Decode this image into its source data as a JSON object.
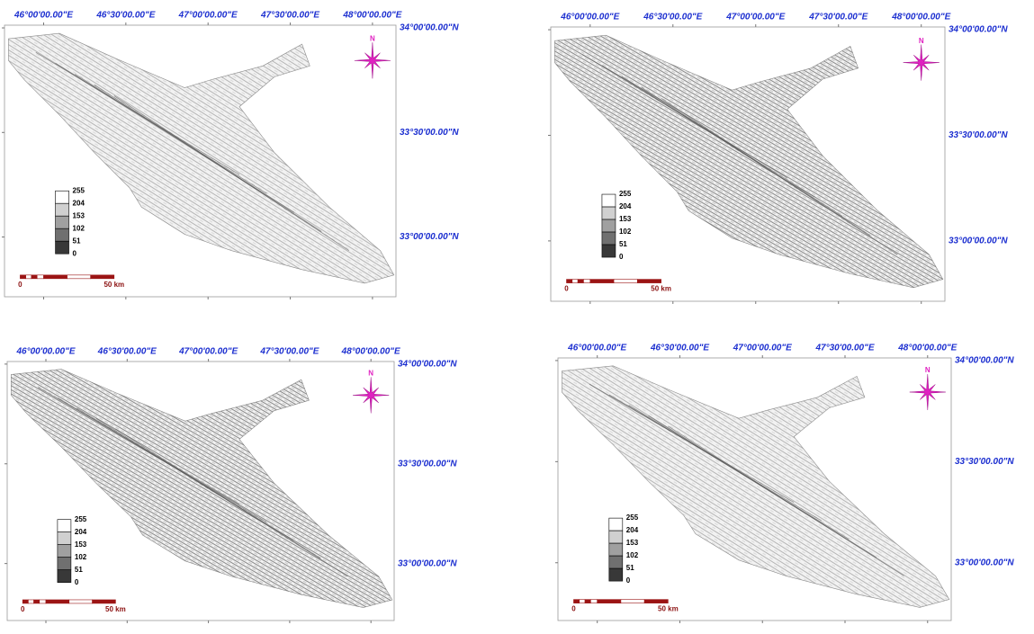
{
  "panels": [
    {
      "lon_labels": [
        "46°00'00.00\"E",
        "46°30'00.00\"E",
        "47°00'00.00\"E",
        "47°30'00.00\"E",
        "48°00'00.00\"E"
      ],
      "lat_labels": [
        "34°00'00.00\"N",
        "33°30'00.00\"N",
        "33°00'00.00\"N"
      ],
      "north": "N",
      "legend": [
        255,
        204,
        153,
        102,
        51,
        0
      ],
      "scale_bar": [
        "0",
        "50 km"
      ]
    },
    {
      "lon_labels": [
        "46°00'00.00\"E",
        "46°30'00.00\"E",
        "47°00'00.00\"E",
        "47°30'00.00\"E",
        "48°00'00.00\"E"
      ],
      "lat_labels": [
        "34°00'00.00\"N",
        "33°30'00.00\"N",
        "33°00'00.00\"N"
      ],
      "north": "N",
      "legend": [
        255,
        204,
        153,
        102,
        51,
        0
      ],
      "scale_bar": [
        "0",
        "50 km"
      ]
    },
    {
      "lon_labels": [
        "46°00'00.00\"E",
        "46°30'00.00\"E",
        "47°00'00.00\"E",
        "47°30'00.00\"E",
        "48°00'00.00\"E"
      ],
      "lat_labels": [
        "34°00'00.00\"N",
        "33°30'00.00\"N",
        "33°00'00.00\"N"
      ],
      "north": "N",
      "legend": [
        255,
        204,
        153,
        102,
        51,
        0
      ],
      "scale_bar": [
        "0",
        "50 km"
      ]
    },
    {
      "lon_labels": [
        "46°00'00.00\"E",
        "46°30'00.00\"E",
        "47°00'00.00\"E",
        "47°30'00.00\"E",
        "48°00'00.00\"E"
      ],
      "lat_labels": [
        "34°00'00.00\"N",
        "33°30'00.00\"N",
        "33°00'00.00\"N"
      ],
      "north": "N",
      "legend": [
        255,
        204,
        153,
        102,
        51,
        0
      ],
      "scale_bar": [
        "0",
        "50 km"
      ]
    }
  ]
}
